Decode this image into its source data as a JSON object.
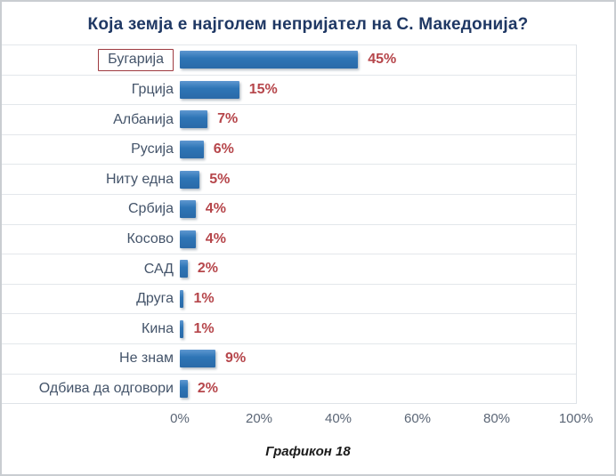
{
  "chart_data": {
    "type": "bar",
    "orientation": "horizontal",
    "title": "Која земја е најголем непријател на С. Македонија?",
    "categories": [
      "Бугарија",
      "Грција",
      "Албанија",
      "Русија",
      "Ниту една",
      "Србија",
      "Косово",
      "САД",
      "Друга",
      "Кина",
      "Не знам",
      "Одбива да одговори"
    ],
    "values": [
      45,
      15,
      7,
      6,
      5,
      4,
      4,
      2,
      1,
      1,
      9,
      2
    ],
    "value_labels": [
      "45%",
      "15%",
      "7%",
      "6%",
      "5%",
      "4%",
      "4%",
      "2%",
      "1%",
      "1%",
      "9%",
      "2%"
    ],
    "xlim": [
      0,
      100
    ],
    "x_ticks": [
      "0%",
      "20%",
      "40%",
      "60%",
      "80%",
      "100%"
    ],
    "highlighted_category": "Бугарија",
    "legend": "none",
    "grid": "horizontal-row-separators",
    "bar_color": "#2E75B6",
    "value_label_color": "#B6464B",
    "title_color": "#1F3864",
    "category_label_color": "#44546A",
    "highlight_box_color": "#9E3A40"
  },
  "caption": "Графикон 18"
}
